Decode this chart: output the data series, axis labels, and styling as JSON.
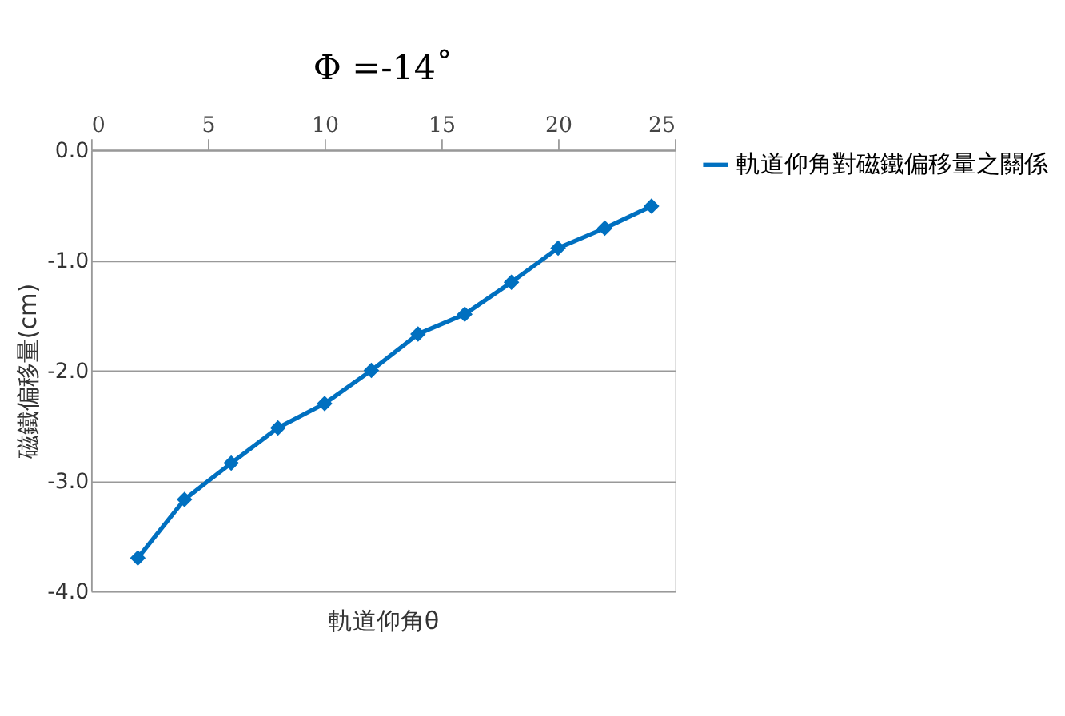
{
  "chart_data": {
    "type": "line",
    "title": "Φ =-14˚",
    "xlabel": "軌道仰角θ",
    "ylabel": "磁鐵偏移量(cm)",
    "x": [
      2,
      4,
      6,
      8,
      10,
      12,
      14,
      16,
      18,
      20,
      22,
      24
    ],
    "series": [
      {
        "name": "軌道仰角對磁鐵偏移量之關係",
        "color": "#0070c0",
        "values": [
          -3.7,
          -3.17,
          -2.84,
          -2.52,
          -2.3,
          -2.0,
          -1.67,
          -1.49,
          -1.2,
          -0.89,
          -0.71,
          -0.51
        ]
      }
    ],
    "xlim": [
      0,
      25
    ],
    "xticks": [
      0,
      5,
      10,
      15,
      20,
      25
    ],
    "ylim": [
      -4,
      0
    ],
    "yticks": [
      {
        "value": 0,
        "label": "0.0"
      },
      {
        "value": -1,
        "label": "-1.0"
      },
      {
        "value": -2,
        "label": "-2.0"
      },
      {
        "value": -3,
        "label": "-3.0"
      },
      {
        "value": -4,
        "label": "-4.0"
      }
    ],
    "grid": "y",
    "legend": "right",
    "marker": "diamond",
    "line_style": "solid"
  }
}
